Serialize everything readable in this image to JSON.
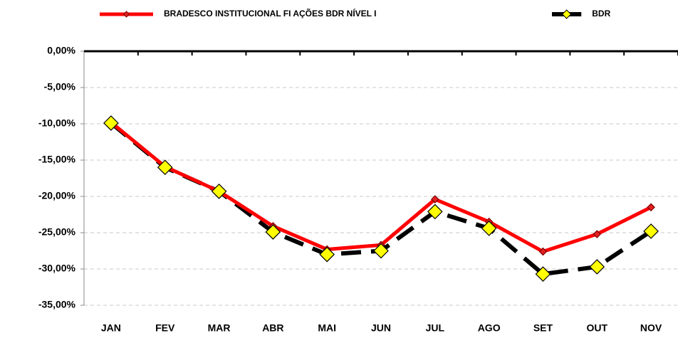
{
  "chart_data": {
    "type": "line",
    "categories": [
      "JAN",
      "FEV",
      "MAR",
      "ABR",
      "MAI",
      "JUN",
      "JUL",
      "AGO",
      "SET",
      "OUT",
      "NOV"
    ],
    "series": [
      {
        "name": "BRADESCO INSTITUCIONAL FI AÇÕES BDR NÍVEL I",
        "color": "#ff0000",
        "values": [
          -9.8,
          -15.9,
          -19.3,
          -24.1,
          -27.3,
          -26.7,
          -20.4,
          -23.5,
          -27.6,
          -25.2,
          -21.5
        ]
      },
      {
        "name": "BDR",
        "color": "#000000",
        "values": [
          -9.9,
          -16.0,
          -19.3,
          -24.9,
          -28.0,
          -27.5,
          -22.1,
          -24.4,
          -30.7,
          -29.7,
          -24.8
        ]
      }
    ],
    "ylim": [
      -35,
      0
    ],
    "yticks": [
      {
        "value": 0,
        "label": "0,00%"
      },
      {
        "value": -5,
        "label": "-5,00%"
      },
      {
        "value": -10,
        "label": "-10,00%"
      },
      {
        "value": -15,
        "label": "-15,00%"
      },
      {
        "value": -20,
        "label": "-20,00%"
      },
      {
        "value": -25,
        "label": "-25,00%"
      },
      {
        "value": -30,
        "label": "-30,00%"
      },
      {
        "value": -35,
        "label": "-35,00%"
      }
    ],
    "grid": true
  }
}
